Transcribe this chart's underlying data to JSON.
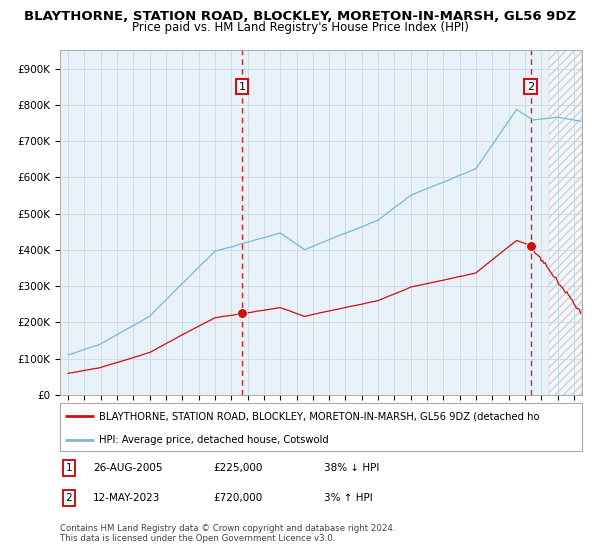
{
  "title": "BLAYTHORNE, STATION ROAD, BLOCKLEY, MORETON-IN-MARSH, GL56 9DZ",
  "subtitle": "Price paid vs. HM Land Registry's House Price Index (HPI)",
  "legend_line1": "BLAYTHORNE, STATION ROAD, BLOCKLEY, MORETON-IN-MARSH, GL56 9DZ (detached ho",
  "legend_line2": "HPI: Average price, detached house, Cotswold",
  "footer1": "Contains HM Land Registry data © Crown copyright and database right 2024.",
  "footer2": "This data is licensed under the Open Government Licence v3.0.",
  "ann1_label": "1",
  "ann1_date": "26-AUG-2005",
  "ann1_price": "£225,000",
  "ann1_hpi": "38% ↓ HPI",
  "ann2_label": "2",
  "ann2_date": "12-MAY-2023",
  "ann2_price": "£720,000",
  "ann2_hpi": "3% ↑ HPI",
  "sale1_year": 2005.65,
  "sale1_value": 225000,
  "sale2_year": 2023.36,
  "sale2_value": 720000,
  "hpi_color": "#7ab8d9",
  "price_color": "#cc1111",
  "vline_color": "#cc1111",
  "marker_color": "#cc1111",
  "ylim_min": 0,
  "ylim_max": 950000,
  "yticks": [
    0,
    100000,
    200000,
    300000,
    400000,
    500000,
    600000,
    700000,
    800000,
    900000
  ],
  "ytick_labels": [
    "£0",
    "£100K",
    "£200K",
    "£300K",
    "£400K",
    "£500K",
    "£600K",
    "£700K",
    "£800K",
    "£900K"
  ],
  "xmin": 1994.5,
  "xmax": 2026.5,
  "grid_color": "#c8d8e8",
  "plot_bg": "#e8f0f8",
  "ann_box_color": "#cc1111"
}
